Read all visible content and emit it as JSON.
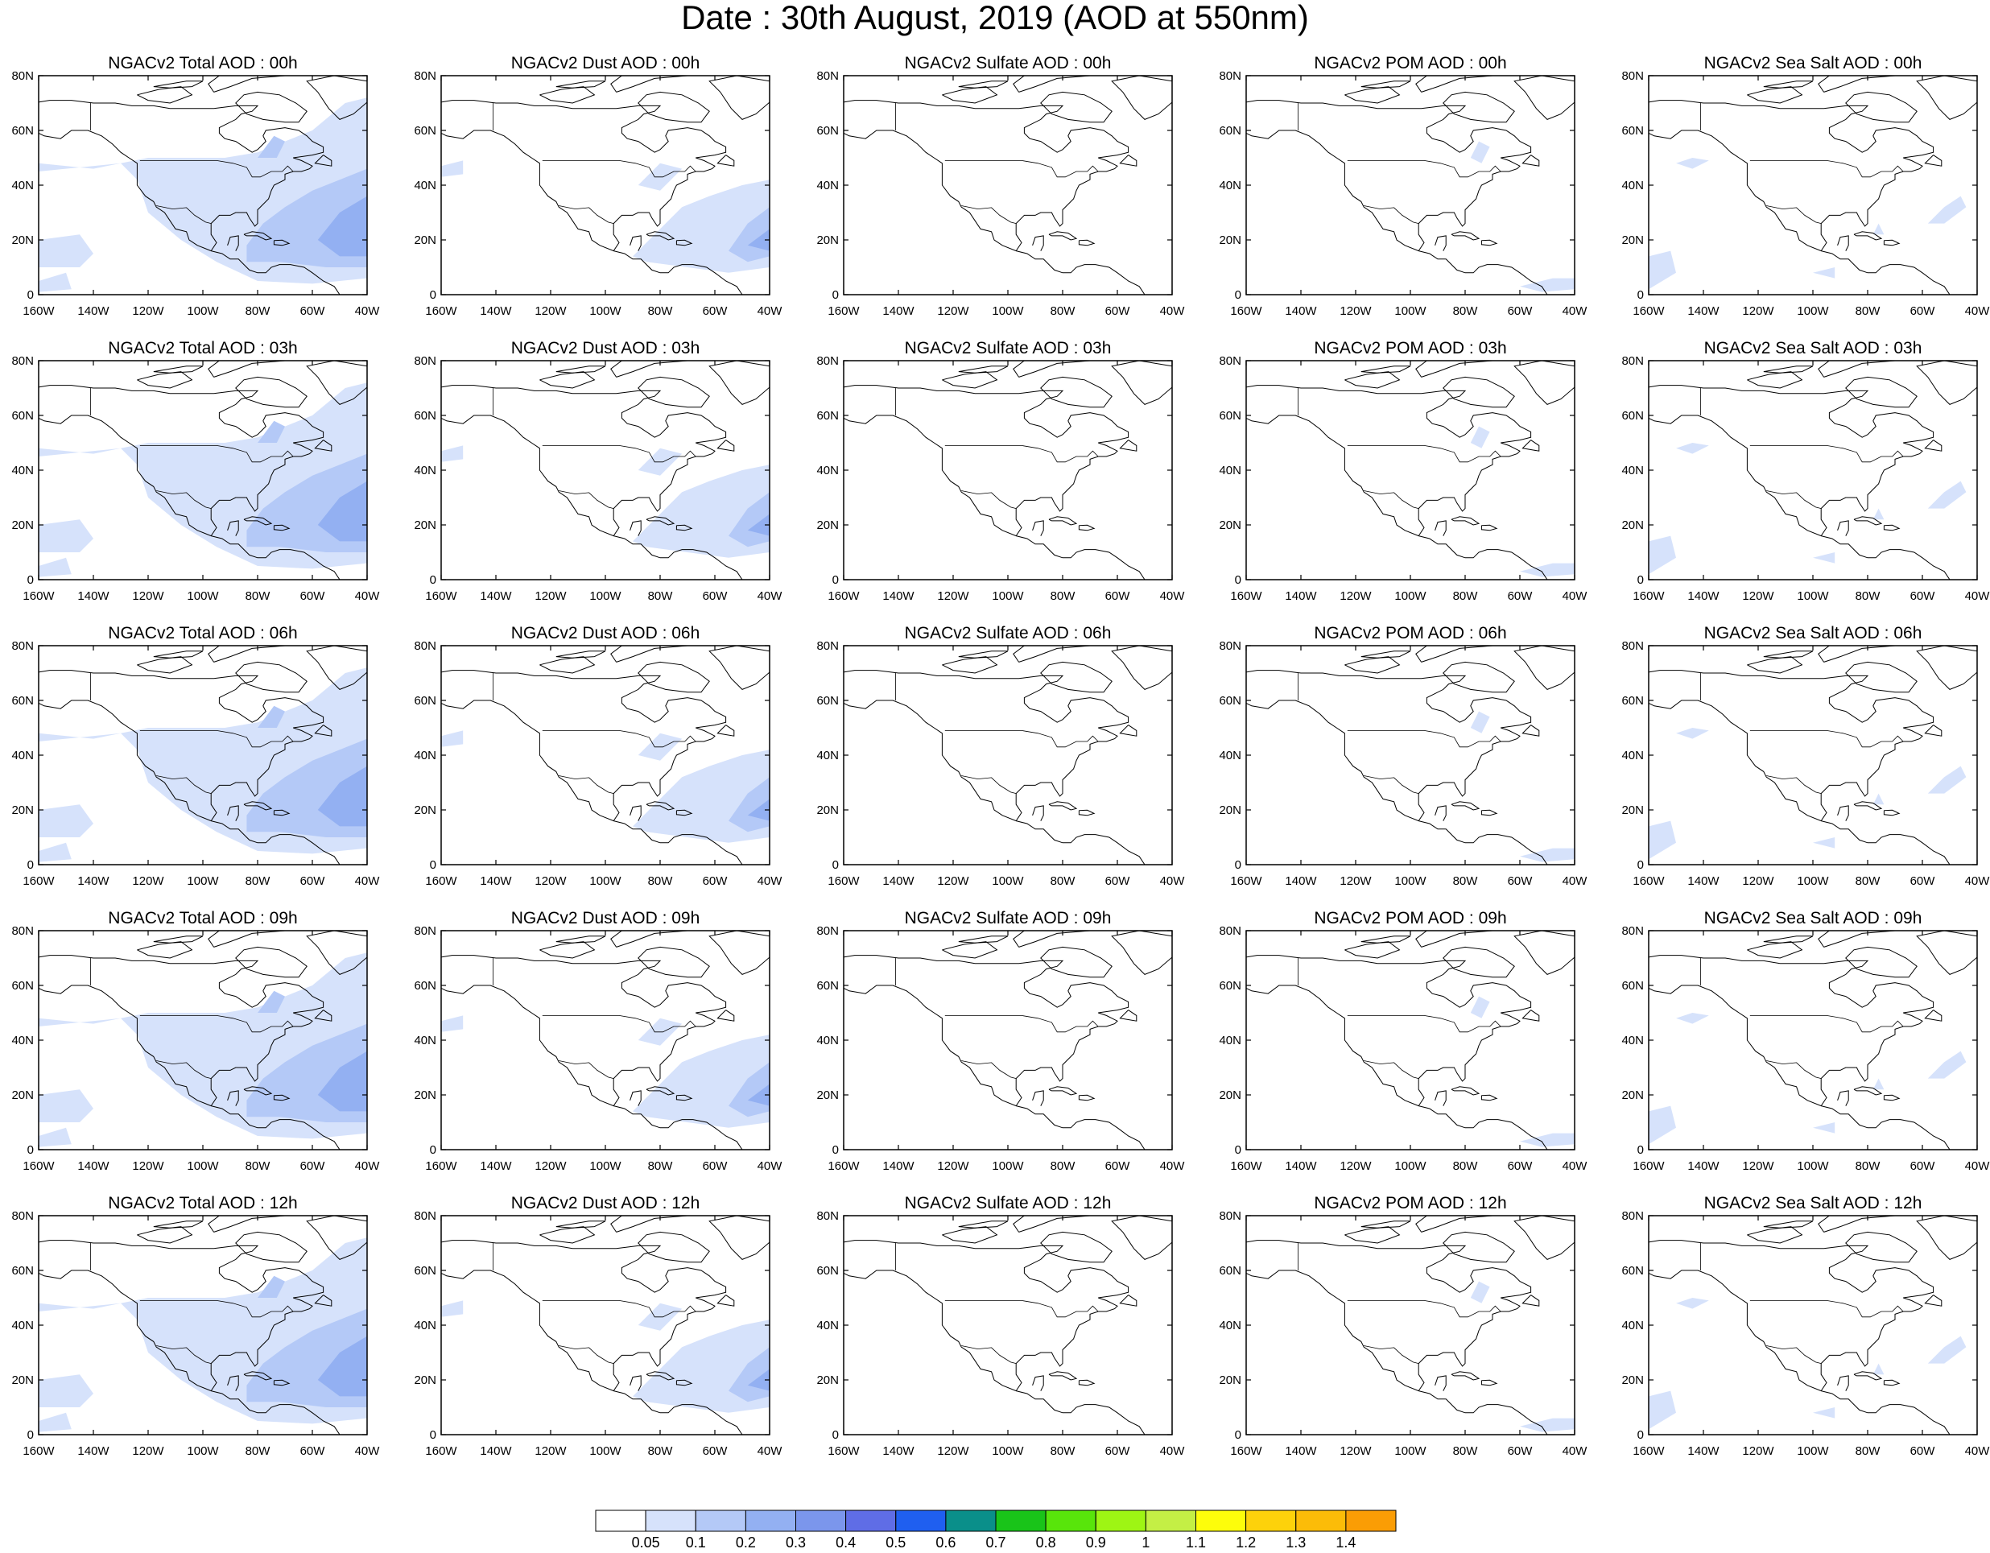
{
  "figure_title": "Date : 30th August, 2019 (AOD at 550nm)",
  "axes": {
    "lat_ticks": [
      "80N",
      "60N",
      "40N",
      "20N",
      "0"
    ],
    "lon_ticks": [
      "160W",
      "140W",
      "120W",
      "100W",
      "80W",
      "60W",
      "40W"
    ]
  },
  "panels": [
    [
      "NGACv2 Total AOD : 00h",
      "NGACv2 Dust AOD : 00h",
      "NGACv2 Sulfate AOD : 00h",
      "NGACv2 POM AOD : 00h",
      "NGACv2 Sea Salt AOD : 00h"
    ],
    [
      "NGACv2 Total AOD : 03h",
      "NGACv2 Dust AOD : 03h",
      "NGACv2 Sulfate AOD : 03h",
      "NGACv2 POM AOD : 03h",
      "NGACv2 Sea Salt AOD : 03h"
    ],
    [
      "NGACv2 Total AOD : 06h",
      "NGACv2 Dust AOD : 06h",
      "NGACv2 Sulfate AOD : 06h",
      "NGACv2 POM AOD : 06h",
      "NGACv2 Sea Salt AOD : 06h"
    ],
    [
      "NGACv2 Total AOD : 09h",
      "NGACv2 Dust AOD : 09h",
      "NGACv2 Sulfate AOD : 09h",
      "NGACv2 POM AOD : 09h",
      "NGACv2 Sea Salt  AOD : 09h"
    ],
    [
      "NGACv2 Total AOD  : 12h",
      "NGACv2 Dust AOD : 12h",
      "NGACv2 Sulfate AOD : 12h",
      "NGACv2 POM  AOD : 12h",
      "NGACv2 Sea Salt  AOD : 12h"
    ]
  ],
  "colorbar": {
    "labels": [
      "0.05",
      "0.1",
      "0.2",
      "0.3",
      "0.4",
      "0.5",
      "0.6",
      "0.7",
      "0.8",
      "0.9",
      "1",
      "1.1",
      "1.2",
      "1.3",
      "1.4"
    ],
    "colors": [
      "#ffffff",
      "#d6e2fb",
      "#b4c9f7",
      "#93b0f2",
      "#7b96ec",
      "#5f6de6",
      "#1f5ff0",
      "#0a8f8a",
      "#19c419",
      "#58e50b",
      "#9ef514",
      "#c4ef45",
      "#fdfd0b",
      "#fdd20b",
      "#fcbc08",
      "#fa9d05",
      "#f77708",
      "#f63a16"
    ]
  },
  "map_colors": {
    "light": "#d6e2fb",
    "mid": "#b4c9f7",
    "strong": "#93b0f2",
    "coast": "#000000"
  }
}
